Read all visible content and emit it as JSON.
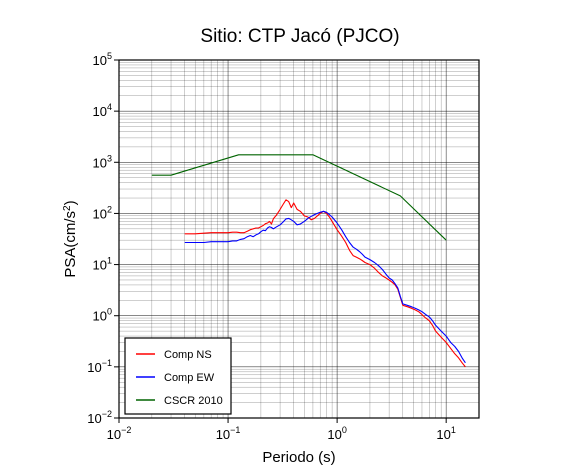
{
  "chart_data": {
    "type": "line",
    "title": "Sitio: CTP Jacó (PJCO)",
    "xlabel": "Periodo (s)",
    "ylabel": "PSA(cm/s",
    "ylabel_sup": "2",
    "ylabel_close": ")",
    "xscale": "log",
    "yscale": "log",
    "xlim": [
      0.01,
      20
    ],
    "ylim": [
      0.01,
      100000
    ],
    "grid": true,
    "legend_position": "bottom-left",
    "x_ticks": [
      {
        "value": 0.01,
        "base": "10",
        "exp": "−2"
      },
      {
        "value": 0.1,
        "base": "10",
        "exp": "−1"
      },
      {
        "value": 1,
        "base": "10",
        "exp": "0"
      },
      {
        "value": 10,
        "base": "10",
        "exp": "1"
      }
    ],
    "y_ticks": [
      {
        "value": 0.01,
        "base": "10",
        "exp": "−2"
      },
      {
        "value": 0.1,
        "base": "10",
        "exp": "−1"
      },
      {
        "value": 1,
        "base": "10",
        "exp": "0"
      },
      {
        "value": 10,
        "base": "10",
        "exp": "1"
      },
      {
        "value": 100,
        "base": "10",
        "exp": "2"
      },
      {
        "value": 1000,
        "base": "10",
        "exp": "3"
      },
      {
        "value": 10000,
        "base": "10",
        "exp": "4"
      },
      {
        "value": 100000,
        "base": "10",
        "exp": "5"
      }
    ],
    "series": [
      {
        "name": "Comp NS",
        "color": "#ff0000",
        "x": [
          0.04,
          0.05,
          0.06,
          0.07,
          0.08,
          0.09,
          0.1,
          0.11,
          0.12,
          0.13,
          0.14,
          0.15,
          0.16,
          0.17,
          0.18,
          0.19,
          0.2,
          0.21,
          0.22,
          0.23,
          0.24,
          0.25,
          0.26,
          0.28,
          0.3,
          0.32,
          0.34,
          0.36,
          0.38,
          0.4,
          0.43,
          0.46,
          0.5,
          0.54,
          0.58,
          0.62,
          0.66,
          0.7,
          0.75,
          0.8,
          0.85,
          0.9,
          1.0,
          1.1,
          1.2,
          1.3,
          1.4,
          1.5,
          1.6,
          1.7,
          1.8,
          2.0,
          2.2,
          2.4,
          2.6,
          2.8,
          3.0,
          3.2,
          3.4,
          3.6,
          3.8,
          4.0,
          4.4,
          4.8,
          5.2,
          5.6,
          6.0,
          6.5,
          7.0,
          7.5,
          8.0,
          9.0,
          10,
          11,
          12,
          13,
          14,
          15
        ],
        "y": [
          40,
          40,
          41,
          42,
          42,
          42,
          42,
          43,
          43,
          42,
          42,
          45,
          48,
          50,
          52,
          52,
          55,
          58,
          63,
          65,
          70,
          62,
          78,
          95,
          120,
          150,
          185,
          170,
          130,
          160,
          120,
          110,
          90,
          85,
          75,
          80,
          90,
          100,
          110,
          100,
          85,
          70,
          48,
          36,
          27,
          19,
          15,
          14,
          13,
          12,
          11,
          10,
          8.5,
          7,
          6,
          5.5,
          5,
          4.5,
          4,
          3.3,
          2.3,
          1.6,
          1.5,
          1.4,
          1.3,
          1.2,
          1.05,
          0.9,
          0.8,
          0.65,
          0.5,
          0.38,
          0.3,
          0.23,
          0.18,
          0.15,
          0.12,
          0.1
        ]
      },
      {
        "name": "Comp EW",
        "color": "#0000ff",
        "x": [
          0.04,
          0.05,
          0.06,
          0.07,
          0.08,
          0.09,
          0.1,
          0.11,
          0.12,
          0.13,
          0.14,
          0.15,
          0.16,
          0.17,
          0.18,
          0.19,
          0.2,
          0.21,
          0.22,
          0.23,
          0.24,
          0.25,
          0.26,
          0.28,
          0.3,
          0.32,
          0.34,
          0.36,
          0.38,
          0.4,
          0.43,
          0.46,
          0.5,
          0.54,
          0.58,
          0.62,
          0.66,
          0.7,
          0.75,
          0.8,
          0.85,
          0.9,
          1.0,
          1.1,
          1.2,
          1.3,
          1.4,
          1.5,
          1.6,
          1.7,
          1.8,
          2.0,
          2.2,
          2.4,
          2.6,
          2.8,
          3.0,
          3.2,
          3.4,
          3.6,
          3.8,
          4.0,
          4.4,
          4.8,
          5.2,
          5.6,
          6.0,
          6.5,
          7.0,
          7.5,
          8.0,
          9.0,
          10,
          11,
          12,
          13,
          14,
          15
        ],
        "y": [
          27,
          27,
          27,
          28,
          28,
          28,
          28,
          29,
          29,
          31,
          32,
          35,
          37,
          35,
          38,
          40,
          44,
          47,
          46,
          52,
          55,
          53,
          50,
          55,
          60,
          68,
          78,
          80,
          75,
          70,
          60,
          62,
          70,
          80,
          88,
          95,
          100,
          105,
          110,
          105,
          95,
          85,
          65,
          48,
          35,
          27,
          22,
          20,
          18,
          16,
          14,
          12.5,
          11,
          9.5,
          8,
          6.5,
          5.5,
          5,
          4.2,
          3.5,
          2.4,
          1.7,
          1.6,
          1.5,
          1.4,
          1.3,
          1.2,
          1.05,
          0.95,
          0.8,
          0.65,
          0.5,
          0.4,
          0.3,
          0.25,
          0.2,
          0.15,
          0.12
        ]
      },
      {
        "name": "CSCR 2010",
        "color": "#006400",
        "x": [
          0.02,
          0.03,
          0.125,
          0.6,
          3.8,
          10
        ],
        "y": [
          560,
          560,
          1400,
          1400,
          220,
          30
        ]
      }
    ]
  }
}
